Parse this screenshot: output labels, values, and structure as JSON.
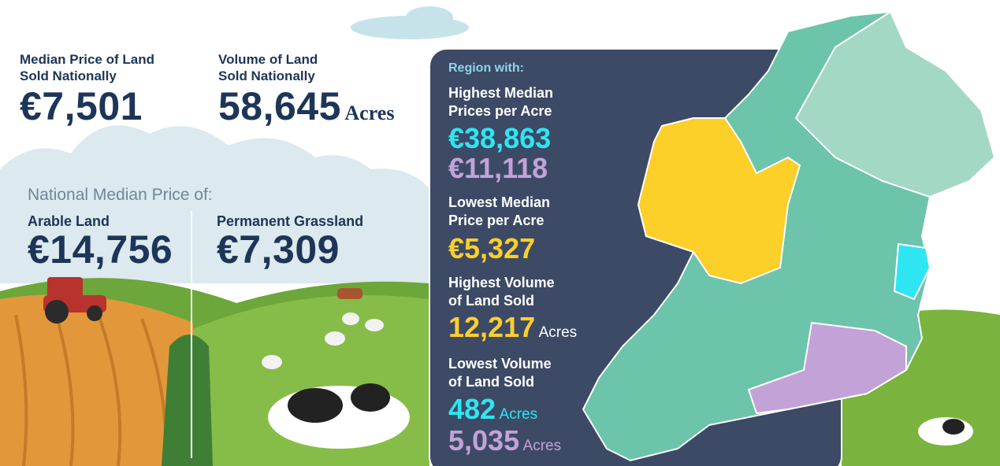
{
  "national": {
    "median_price": {
      "label": [
        "Median Price of Land",
        "Sold Nationally"
      ],
      "value": "€7,501"
    },
    "volume": {
      "label": [
        "Volume of Land",
        "Sold Nationally"
      ],
      "value": "58,645",
      "unit": "Acres"
    }
  },
  "median_by_use": {
    "title": "National Median Price of:",
    "items": [
      {
        "label": "Arable Land",
        "value": "€14,756"
      },
      {
        "label": "Permanent Grassland",
        "value": "€7,309"
      }
    ]
  },
  "regions": {
    "title": "Region with:",
    "items": [
      {
        "label": [
          "Highest Median",
          "Prices per Acre"
        ],
        "values": [
          "€38,863",
          "€11,118"
        ]
      },
      {
        "label": [
          "Lowest Median",
          "Price per Acre"
        ],
        "values": [
          "€5,327"
        ]
      },
      {
        "label": [
          "Highest Volume",
          "of Land Sold"
        ],
        "values": [
          "12,217"
        ],
        "units": [
          "Acres"
        ]
      },
      {
        "label": [
          "Lowest Volume",
          "of Land Sold"
        ],
        "values": [
          "482",
          "5,035"
        ],
        "units": [
          "Acres",
          "Acres"
        ]
      }
    ]
  }
}
